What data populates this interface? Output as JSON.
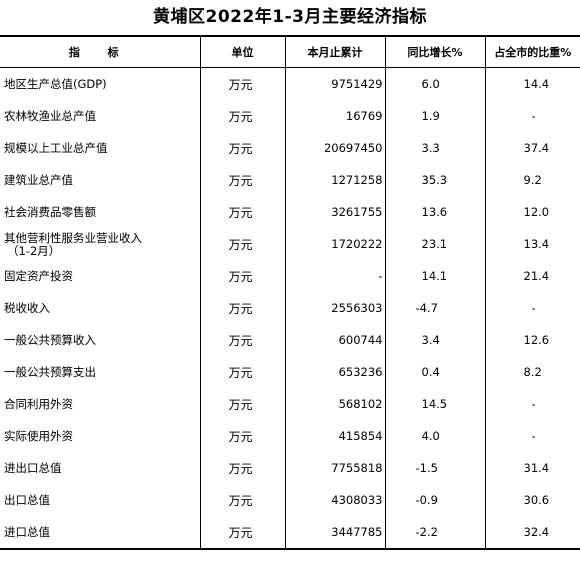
{
  "title": "黄埔区2022年1-3月主要经济指标",
  "header": {
    "indicator": "指 标",
    "unit": "单位",
    "cumulative": "本月止累计",
    "yoy": "同比增长%",
    "share": "占全市的比重%"
  },
  "rows": [
    {
      "name": "地区生产总值(GDP)",
      "unit": "万元",
      "value": "9751429",
      "yoy": "6.0",
      "share": "14.4"
    },
    {
      "name": "农林牧渔业总产值",
      "unit": "万元",
      "value": "16769",
      "yoy": "1.9",
      "share": "-"
    },
    {
      "name": "规模以上工业总产值",
      "unit": "万元",
      "value": "20697450",
      "yoy": "3.3",
      "share": "37.4"
    },
    {
      "name": "建筑业总产值",
      "unit": "万元",
      "value": "1271258",
      "yoy": "35.3",
      "share": "9.2"
    },
    {
      "name": "社会消费品零售额",
      "unit": "万元",
      "value": "3261755",
      "yoy": "13.6",
      "share": "12.0"
    },
    {
      "name": "其他营利性服务业营业收入",
      "name_line2": "（1-2月）",
      "unit": "万元",
      "value": "1720222",
      "yoy": "23.1",
      "share": "13.4"
    },
    {
      "name": "固定资产投资",
      "unit": "万元",
      "value": "-",
      "yoy": "14.1",
      "share": "21.4"
    },
    {
      "name": "税收收入",
      "unit": "万元",
      "value": "2556303",
      "yoy": "-4.7",
      "share": "-"
    },
    {
      "name": "一般公共预算收入",
      "unit": "万元",
      "value": "600744",
      "yoy": "3.4",
      "share": "12.6"
    },
    {
      "name": "一般公共预算支出",
      "unit": "万元",
      "value": "653236",
      "yoy": "0.4",
      "share": "8.2"
    },
    {
      "name": "合同利用外资",
      "unit": "万元",
      "value": "568102",
      "yoy": "14.5",
      "share": "-"
    },
    {
      "name": "实际使用外资",
      "unit": "万元",
      "value": "415854",
      "yoy": "4.0",
      "share": "-"
    },
    {
      "name": "进出口总值",
      "unit": "万元",
      "value": "7755818",
      "yoy": "-1.5",
      "share": "31.4"
    },
    {
      "name": "出口总值",
      "unit": "万元",
      "value": "4308033",
      "yoy": "-0.9",
      "share": "30.6"
    },
    {
      "name": "进口总值",
      "unit": "万元",
      "value": "3447785",
      "yoy": "-2.2",
      "share": "32.4"
    }
  ]
}
